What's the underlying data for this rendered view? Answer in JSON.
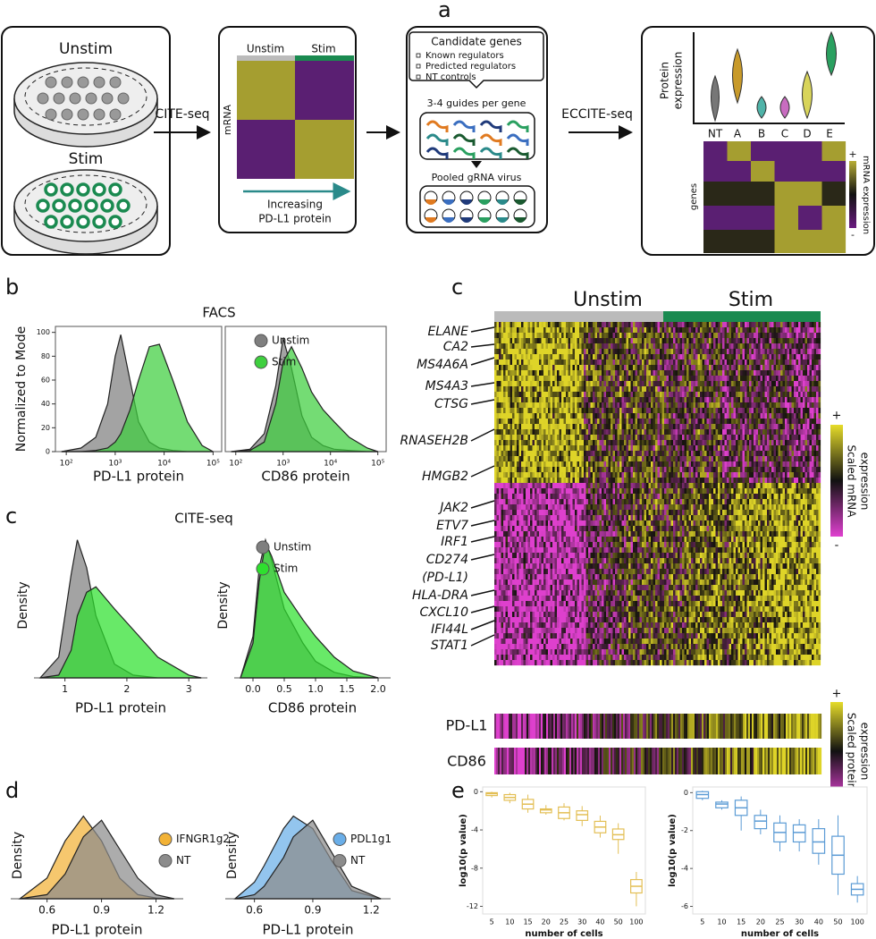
{
  "panel_labels": [
    "a",
    "b",
    "c",
    "c",
    "d",
    "e"
  ],
  "panel_a": {
    "dish_unstim": "Unstim",
    "dish_stim": "Stim",
    "step1": "CITE-seq",
    "heatmap": {
      "col_unstim": "Unstim",
      "col_stim": "Stim",
      "row_label": "mRNA",
      "caption": [
        "Increasing",
        "PD-L1 protein"
      ]
    },
    "candidates": {
      "title": "Candidate genes",
      "items": [
        "Known regulators",
        "Predicted regulators",
        "NT controls"
      ],
      "guides": "3-4 guides per gene",
      "virus": "Pooled gRNA virus"
    },
    "step2": "ECCITE-seq",
    "result": {
      "ylabel": [
        "Protein",
        "expression"
      ],
      "groups": [
        "NT",
        "A",
        "B",
        "C",
        "D",
        "E"
      ],
      "heat_ylabel": "genes",
      "colorbar_label": "mRNA expression",
      "plus": "+",
      "minus": "-"
    }
  },
  "panel_c_heatmap": {
    "col_unstim": "Unstim",
    "col_stim": "Stim",
    "genes": [
      "ELANE",
      "CA2",
      "MS4A6A",
      "MS4A3",
      "CTSG",
      "RNASEH2B",
      "HMGB2",
      "JAK2",
      "ETV7",
      "IRF1",
      "CD274",
      "(PD-L1)",
      "HLA-DRA",
      "CXCL10",
      "IFI44L",
      "STAT1"
    ],
    "colorbar_mrna": [
      "Scaled mRNA",
      "expression"
    ],
    "protein_rows": [
      "PD-L1",
      "CD86"
    ],
    "colorbar_protein": [
      "Scaled protein",
      "expression"
    ],
    "plus": "+",
    "minus": "-"
  },
  "chart_data": [
    {
      "type": "area",
      "title": "FACS",
      "ylabel": "Normalized to Mode",
      "xlabel": "PD-L1 protein",
      "xscale": "log",
      "xlim": [
        60,
        150000
      ],
      "xticks": [
        {
          "value": 100,
          "label": "10²"
        },
        {
          "value": 1000,
          "label": "10³"
        },
        {
          "value": 10000,
          "label": "10⁴"
        },
        {
          "value": 100000,
          "label": "10⁵"
        }
      ],
      "ylim": [
        0,
        105
      ],
      "yticks": [
        0,
        20,
        40,
        60,
        80,
        100
      ],
      "x": [
        80,
        200,
        400,
        700,
        1000,
        1300,
        2000,
        3000,
        5000,
        8000,
        15000,
        30000,
        60000,
        100000
      ],
      "series": [
        {
          "color": "#7f7f7f",
          "values": [
            0,
            3,
            12,
            40,
            80,
            98,
            60,
            25,
            8,
            3,
            1,
            0,
            0,
            0
          ]
        },
        {
          "color": "#3ecf3e",
          "values": [
            0,
            0,
            1,
            3,
            8,
            15,
            35,
            60,
            88,
            90,
            60,
            25,
            5,
            0
          ]
        }
      ]
    },
    {
      "type": "area",
      "xlabel": "CD86 protein",
      "xscale": "log",
      "legend": "upper right",
      "xlim": [
        60,
        150000
      ],
      "xticks": [
        {
          "value": 100,
          "label": "10²"
        },
        {
          "value": 1000,
          "label": "10³"
        },
        {
          "value": 10000,
          "label": "10⁴"
        },
        {
          "value": 100000,
          "label": "10⁵"
        }
      ],
      "ylim": [
        0,
        105
      ],
      "x": [
        80,
        200,
        400,
        700,
        1000,
        1500,
        2500,
        4000,
        7000,
        12000,
        25000,
        60000,
        100000
      ],
      "series": [
        {
          "name": "Unstim",
          "color": "#7f7f7f",
          "values": [
            0,
            2,
            15,
            55,
            95,
            70,
            30,
            12,
            5,
            2,
            1,
            0,
            0
          ]
        },
        {
          "name": "Stim",
          "color": "#3ecf3e",
          "values": [
            0,
            1,
            8,
            40,
            75,
            88,
            70,
            50,
            35,
            25,
            12,
            3,
            0
          ]
        }
      ]
    },
    {
      "type": "area",
      "title": "CITE-seq",
      "ylabel": "Density",
      "xlabel": "PD-L1 protein",
      "xlim": [
        0.5,
        3.3
      ],
      "xticks": [
        1,
        2,
        3
      ],
      "ylim": [
        0,
        1.05
      ],
      "x": [
        0.6,
        0.9,
        1.1,
        1.2,
        1.35,
        1.5,
        1.8,
        2.1,
        2.5,
        3.0,
        3.2
      ],
      "series": [
        {
          "color": "#7f7f7f",
          "values": [
            0,
            0.15,
            0.75,
            1.0,
            0.8,
            0.45,
            0.1,
            0.02,
            0,
            0,
            0
          ]
        },
        {
          "color": "#2ee02e",
          "values": [
            0,
            0.02,
            0.2,
            0.45,
            0.62,
            0.66,
            0.5,
            0.35,
            0.15,
            0.02,
            0
          ]
        }
      ]
    },
    {
      "type": "area",
      "ylabel": "Density",
      "xlabel": "CD86 protein",
      "legend": "upper right",
      "xlim": [
        -0.3,
        2.2
      ],
      "xticks": [
        {
          "value": 0,
          "label": "0.0"
        },
        0.5,
        {
          "value": 1,
          "label": "1.0"
        },
        1.5,
        {
          "value": 2,
          "label": "2.0"
        }
      ],
      "ylim": [
        0,
        1.05
      ],
      "x": [
        -0.2,
        0,
        0.1,
        0.2,
        0.3,
        0.5,
        0.8,
        1.0,
        1.3,
        1.6,
        2.0
      ],
      "series": [
        {
          "name": "Unstim",
          "color": "#7f7f7f",
          "values": [
            0,
            0.3,
            0.8,
            1.0,
            0.85,
            0.5,
            0.25,
            0.12,
            0.04,
            0.01,
            0
          ]
        },
        {
          "name": "Stim",
          "color": "#2ee02e",
          "values": [
            0,
            0.25,
            0.7,
            0.98,
            0.88,
            0.62,
            0.42,
            0.3,
            0.15,
            0.05,
            0
          ]
        }
      ]
    },
    {
      "type": "area",
      "ylabel": "Density",
      "xlabel": "PD-L1 protein",
      "legend": "center right",
      "xlim": [
        0.4,
        1.35
      ],
      "xticks": [
        0.6,
        0.9,
        1.2
      ],
      "ylim": [
        0,
        1.05
      ],
      "x": [
        0.45,
        0.6,
        0.7,
        0.8,
        0.9,
        1.0,
        1.1,
        1.2,
        1.3
      ],
      "series": [
        {
          "name": "IFNGR1g2",
          "color": "#f2b236",
          "values": [
            0,
            0.25,
            0.7,
            1.0,
            0.7,
            0.25,
            0.05,
            0.01,
            0
          ]
        },
        {
          "name": "NT",
          "color": "#8c8c8c",
          "values": [
            0,
            0.05,
            0.3,
            0.75,
            0.95,
            0.6,
            0.25,
            0.05,
            0
          ]
        }
      ]
    },
    {
      "type": "area",
      "ylabel": "Density",
      "xlabel": "PD-L1 protein",
      "legend": "center right",
      "xlim": [
        0.45,
        1.3
      ],
      "xticks": [
        0.6,
        0.9,
        1.2
      ],
      "ylim": [
        0,
        1.05
      ],
      "x": [
        0.5,
        0.6,
        0.65,
        0.75,
        0.8,
        0.9,
        1.0,
        1.1,
        1.25
      ],
      "series": [
        {
          "name": "PDL1g1",
          "color": "#6aaee8",
          "values": [
            0,
            0.2,
            0.4,
            0.85,
            1.0,
            0.85,
            0.45,
            0.1,
            0
          ]
        },
        {
          "name": "NT",
          "color": "#8c8c8c",
          "values": [
            0,
            0.05,
            0.15,
            0.5,
            0.75,
            0.95,
            0.55,
            0.15,
            0
          ]
        }
      ]
    },
    {
      "type": "box",
      "ylabel": "log10(p value)",
      "xlabel": "number of cells",
      "color": "#e3bf55",
      "ylim": [
        -12.8,
        0.5
      ],
      "yticks": [
        0,
        -4,
        -8,
        -12
      ],
      "categories": [
        "5",
        "10",
        "15",
        "20",
        "25",
        "30",
        "40",
        "50",
        "100"
      ],
      "boxes": [
        {
          "low": -0.6,
          "q1": -0.4,
          "median": -0.2,
          "q3": -0.1,
          "high": 0
        },
        {
          "low": -1.2,
          "q1": -0.9,
          "median": -0.6,
          "q3": -0.3,
          "high": -0.1
        },
        {
          "low": -2.2,
          "q1": -1.8,
          "median": -1.3,
          "q3": -0.8,
          "high": -0.3
        },
        {
          "low": -2.4,
          "q1": -2.2,
          "median": -1.9,
          "q3": -1.8,
          "high": -1.4
        },
        {
          "low": -3.0,
          "q1": -2.8,
          "median": -2.2,
          "q3": -1.6,
          "high": -1.2
        },
        {
          "low": -3.6,
          "q1": -3.0,
          "median": -2.4,
          "q3": -2.0,
          "high": -1.5
        },
        {
          "low": -4.8,
          "q1": -4.3,
          "median": -3.7,
          "q3": -3.1,
          "high": -2.5
        },
        {
          "low": -6.5,
          "q1": -5.0,
          "median": -4.5,
          "q3": -3.9,
          "high": -3.3
        },
        {
          "low": -12.0,
          "q1": -10.6,
          "median": -9.9,
          "q3": -9.2,
          "high": -8.4
        }
      ]
    },
    {
      "type": "box",
      "ylabel": "log10(p value)",
      "xlabel": "number of cells",
      "color": "#5b9bd5",
      "ylim": [
        -6.4,
        0.3
      ],
      "yticks": [
        0,
        -2,
        -4,
        -6
      ],
      "categories": [
        "5",
        "10",
        "15",
        "20",
        "25",
        "30",
        "40",
        "50",
        "100"
      ],
      "boxes": [
        {
          "low": -0.4,
          "q1": -0.3,
          "median": -0.1,
          "q3": 0.05,
          "high": 0.1
        },
        {
          "low": -0.9,
          "q1": -0.8,
          "median": -0.6,
          "q3": -0.5,
          "high": -0.4
        },
        {
          "low": -2.0,
          "q1": -1.2,
          "median": -0.8,
          "q3": -0.4,
          "high": -0.2
        },
        {
          "low": -2.2,
          "q1": -1.9,
          "median": -1.5,
          "q3": -1.2,
          "high": -0.9
        },
        {
          "low": -3.1,
          "q1": -2.6,
          "median": -2.1,
          "q3": -1.6,
          "high": -1.2
        },
        {
          "low": -3.1,
          "q1": -2.6,
          "median": -2.1,
          "q3": -1.7,
          "high": -1.4
        },
        {
          "low": -3.8,
          "q1": -3.2,
          "median": -2.6,
          "q3": -1.9,
          "high": -1.4
        },
        {
          "low": -5.4,
          "q1": -4.3,
          "median": -3.3,
          "q3": -2.3,
          "high": -1.2
        },
        {
          "low": -5.8,
          "q1": -5.4,
          "median": -5.1,
          "q3": -4.8,
          "high": -4.4
        }
      ]
    }
  ]
}
